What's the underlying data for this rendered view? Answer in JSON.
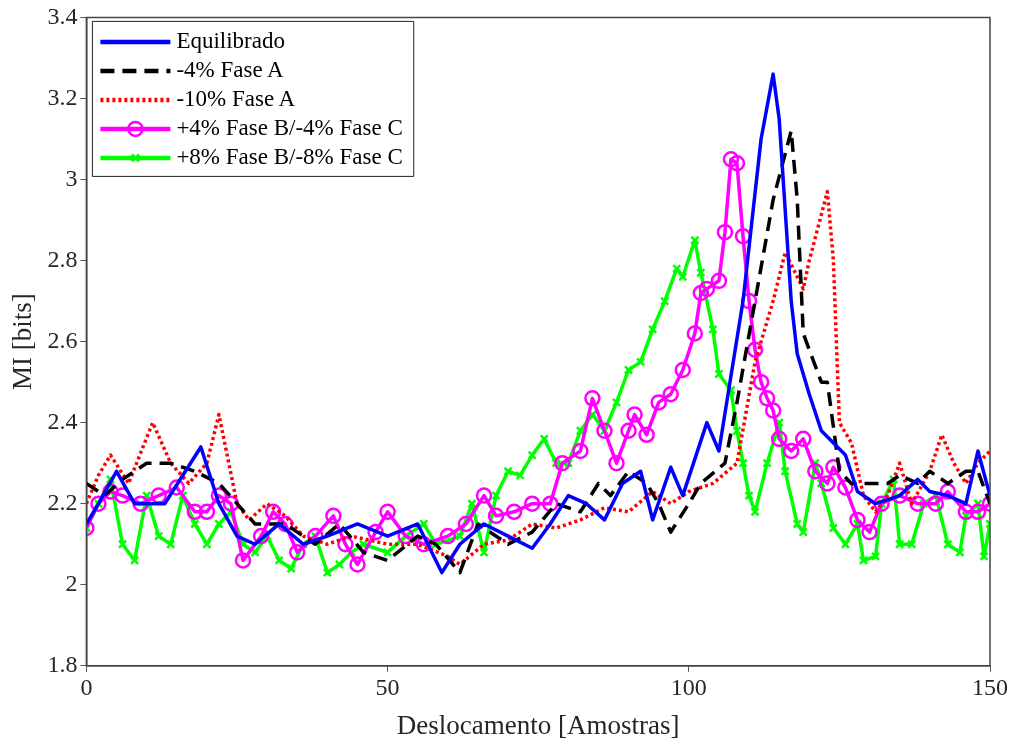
{
  "chart_data": {
    "type": "line",
    "xlabel": "Deslocamento [Amostras]",
    "ylabel": "MI [bits]",
    "xlim": [
      0,
      150
    ],
    "xticks": [
      0,
      50,
      100,
      150
    ],
    "ylim": [
      1.8,
      3.4
    ],
    "yticks": [
      1.8,
      2,
      2.2,
      2.4,
      2.6,
      2.8,
      3,
      3.2,
      3.4
    ],
    "grid": false,
    "legend": "top left",
    "series": [
      {
        "name": "Equilibrado",
        "color": "#0000ff",
        "line_style": "solid",
        "marker": "none",
        "x": [
          0,
          2,
          5,
          8,
          13,
          19,
          22,
          25,
          28,
          32,
          36,
          40,
          45,
          50,
          55,
          59,
          62,
          66,
          70,
          74,
          77,
          80,
          83,
          86,
          89,
          92,
          94,
          97,
          99,
          103,
          105,
          109,
          112,
          114,
          115,
          117,
          118,
          120,
          122,
          126,
          128,
          131,
          135,
          138,
          140,
          143,
          146,
          148,
          150
        ],
        "values": [
          2.15,
          2.2,
          2.28,
          2.2,
          2.2,
          2.34,
          2.2,
          2.12,
          2.1,
          2.15,
          2.1,
          2.12,
          2.15,
          2.12,
          2.15,
          2.03,
          2.1,
          2.15,
          2.12,
          2.09,
          2.15,
          2.22,
          2.2,
          2.16,
          2.25,
          2.28,
          2.16,
          2.29,
          2.22,
          2.4,
          2.33,
          2.7,
          3.1,
          3.26,
          3.15,
          2.7,
          2.57,
          2.47,
          2.38,
          2.32,
          2.23,
          2.2,
          2.22,
          2.26,
          2.23,
          2.22,
          2.2,
          2.33,
          2.22
        ]
      },
      {
        "name": "-4% Fase A",
        "color": "#000000",
        "line_style": "dashed",
        "marker": "none",
        "x": [
          0,
          3,
          6,
          10,
          14,
          18,
          22,
          25,
          28,
          33,
          38,
          42,
          46,
          50,
          55,
          58,
          62,
          65,
          70,
          74,
          78,
          82,
          85,
          87,
          90,
          93,
          95,
          97,
          100,
          102,
          106,
          108,
          111,
          114,
          117,
          118,
          119,
          122,
          123,
          125,
          127,
          130,
          133,
          135,
          138,
          140,
          143,
          146,
          148,
          150
        ],
        "values": [
          2.25,
          2.22,
          2.26,
          2.3,
          2.3,
          2.28,
          2.25,
          2.2,
          2.15,
          2.15,
          2.1,
          2.15,
          2.08,
          2.06,
          2.12,
          2.1,
          2.03,
          2.15,
          2.1,
          2.13,
          2.2,
          2.18,
          2.25,
          2.22,
          2.28,
          2.25,
          2.2,
          2.13,
          2.2,
          2.25,
          2.3,
          2.45,
          2.7,
          2.95,
          3.12,
          2.95,
          2.62,
          2.5,
          2.5,
          2.28,
          2.25,
          2.25,
          2.25,
          2.27,
          2.25,
          2.28,
          2.25,
          2.28,
          2.28,
          2.2
        ]
      },
      {
        "name": "-10% Fase A",
        "color": "#ff0000",
        "line_style": "dotted",
        "marker": "none",
        "x": [
          0,
          2,
          4,
          7,
          11,
          14,
          17,
          20,
          22,
          25,
          27,
          30,
          33,
          36,
          40,
          44,
          50,
          55,
          60,
          62,
          66,
          70,
          74,
          78,
          82,
          86,
          90,
          94,
          97,
          100,
          104,
          108,
          111,
          114,
          116,
          119,
          120,
          123,
          124,
          125,
          127,
          129,
          131,
          133,
          135,
          137,
          140,
          142,
          144,
          146,
          148,
          150
        ],
        "values": [
          2.2,
          2.27,
          2.32,
          2.25,
          2.4,
          2.3,
          2.25,
          2.3,
          2.42,
          2.2,
          2.16,
          2.2,
          2.17,
          2.12,
          2.1,
          2.12,
          2.1,
          2.1,
          2.07,
          2.05,
          2.1,
          2.11,
          2.15,
          2.14,
          2.16,
          2.19,
          2.18,
          2.23,
          2.2,
          2.23,
          2.25,
          2.3,
          2.55,
          2.7,
          2.82,
          2.73,
          2.8,
          2.97,
          2.8,
          2.4,
          2.35,
          2.22,
          2.18,
          2.22,
          2.3,
          2.2,
          2.28,
          2.37,
          2.3,
          2.25,
          2.3,
          2.33
        ]
      },
      {
        "name": "+4% Fase B/-4% Fase C",
        "color": "#ff00ff",
        "line_style": "solid",
        "marker": "circle",
        "x": [
          0,
          2,
          4,
          6,
          9,
          12,
          15,
          18,
          20,
          22,
          24,
          26,
          29,
          31,
          33,
          35,
          38,
          41,
          43,
          45,
          48,
          50,
          53,
          56,
          60,
          63,
          66,
          68,
          71,
          74,
          77,
          79,
          82,
          84,
          86,
          88,
          90,
          91,
          93,
          95,
          97,
          99,
          101,
          102,
          103,
          105,
          106,
          107,
          108,
          109,
          110,
          111,
          112,
          113,
          114,
          115,
          117,
          119,
          121,
          123,
          124,
          126,
          128,
          130,
          132,
          135,
          138,
          141,
          143,
          146,
          148,
          150
        ],
        "values": [
          2.14,
          2.2,
          2.23,
          2.22,
          2.2,
          2.22,
          2.24,
          2.18,
          2.18,
          2.22,
          2.2,
          2.06,
          2.12,
          2.18,
          2.15,
          2.08,
          2.12,
          2.17,
          2.1,
          2.05,
          2.13,
          2.18,
          2.12,
          2.1,
          2.12,
          2.15,
          2.22,
          2.17,
          2.18,
          2.2,
          2.2,
          2.3,
          2.33,
          2.46,
          2.38,
          2.3,
          2.38,
          2.42,
          2.37,
          2.45,
          2.47,
          2.53,
          2.62,
          2.72,
          2.73,
          2.75,
          2.87,
          3.05,
          3.04,
          2.86,
          2.7,
          2.58,
          2.5,
          2.46,
          2.43,
          2.36,
          2.33,
          2.36,
          2.28,
          2.25,
          2.29,
          2.24,
          2.16,
          2.13,
          2.2,
          2.22,
          2.2,
          2.2,
          2.23,
          2.18,
          2.18,
          2.2
        ]
      },
      {
        "name": "+8% Fase B/-8% Fase C",
        "color": "#00ff00",
        "line_style": "solid",
        "marker": "cross",
        "x": [
          0,
          2,
          4,
          6,
          8,
          10,
          12,
          14,
          16,
          18,
          20,
          22,
          24,
          26,
          28,
          30,
          32,
          34,
          36,
          38,
          40,
          42,
          44,
          46,
          50,
          53,
          56,
          58,
          62,
          64,
          66,
          68,
          70,
          72,
          74,
          76,
          78,
          80,
          82,
          84,
          86,
          88,
          90,
          92,
          94,
          96,
          98,
          99,
          101,
          102,
          104,
          105,
          107,
          108,
          109,
          110,
          111,
          113,
          115,
          116,
          118,
          119,
          121,
          122,
          124,
          126,
          128,
          129,
          131,
          132,
          134,
          135,
          137,
          139,
          141,
          143,
          145,
          146,
          148,
          149,
          150
        ],
        "values": [
          2.14,
          2.2,
          2.26,
          2.1,
          2.06,
          2.22,
          2.12,
          2.1,
          2.22,
          2.15,
          2.1,
          2.15,
          2.18,
          2.1,
          2.08,
          2.12,
          2.06,
          2.04,
          2.1,
          2.12,
          2.03,
          2.05,
          2.08,
          2.1,
          2.08,
          2.12,
          2.15,
          2.1,
          2.12,
          2.2,
          2.08,
          2.22,
          2.28,
          2.27,
          2.32,
          2.36,
          2.3,
          2.3,
          2.38,
          2.42,
          2.38,
          2.45,
          2.53,
          2.55,
          2.63,
          2.7,
          2.78,
          2.76,
          2.85,
          2.77,
          2.63,
          2.52,
          2.48,
          2.38,
          2.3,
          2.22,
          2.18,
          2.3,
          2.4,
          2.28,
          2.15,
          2.13,
          2.3,
          2.25,
          2.14,
          2.1,
          2.15,
          2.06,
          2.07,
          2.2,
          2.26,
          2.1,
          2.1,
          2.2,
          2.22,
          2.1,
          2.08,
          2.17,
          2.2,
          2.07,
          2.15
        ]
      }
    ]
  }
}
